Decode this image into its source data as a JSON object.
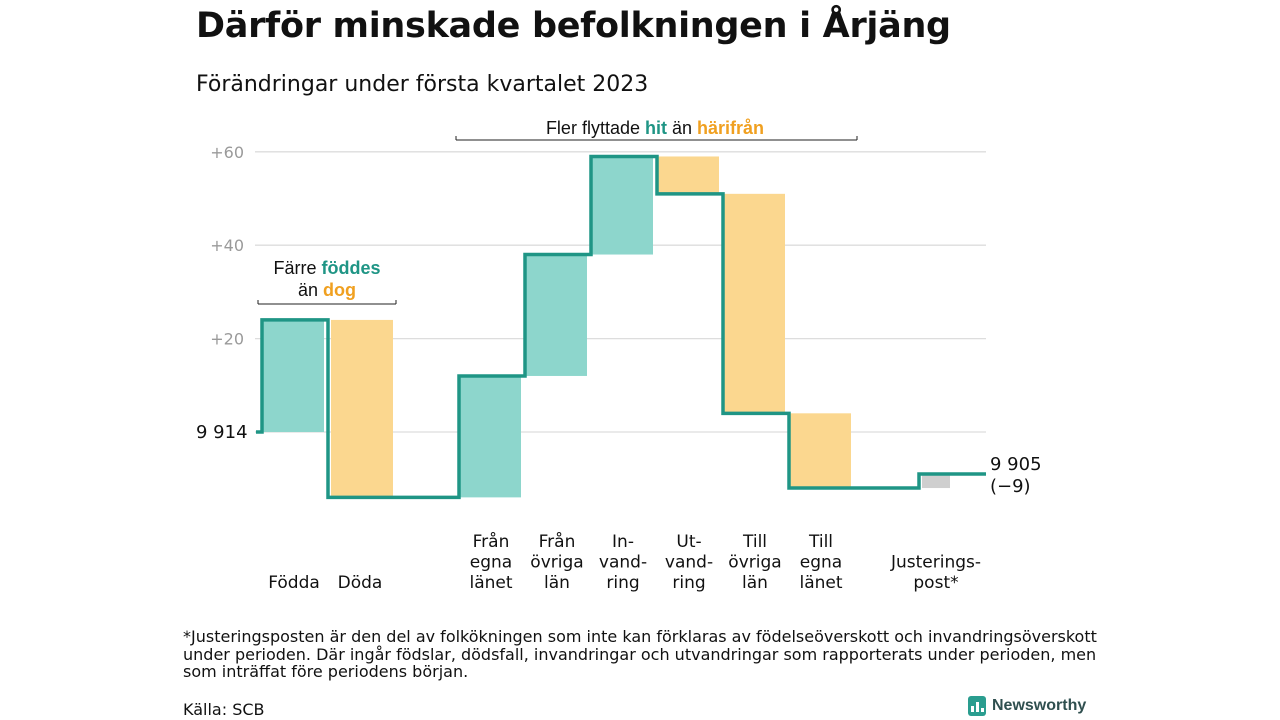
{
  "title": "Därför minskade befolkningen i Årjäng",
  "subtitle": "Förändringar under första kvartalet 2023",
  "colors": {
    "plus": "#8dd6cc",
    "minus": "#fbd78f",
    "line": "#1f9585",
    "adjust": "#cfcfcf",
    "grid": "#dddddd",
    "tick": "#9a9a9a",
    "hit": "#1f9585",
    "harifran": "#f0a020"
  },
  "chart_data": {
    "type": "waterfall",
    "start": {
      "label": "9 914",
      "value": 9914
    },
    "end": {
      "label_lines": [
        "9 905",
        "(−9)"
      ],
      "value": 9905,
      "change": -9
    },
    "ylim": [
      -14,
      61
    ],
    "y_ticks": [
      {
        "value": 20,
        "label": "+20"
      },
      {
        "value": 40,
        "label": "+40"
      },
      {
        "value": 60,
        "label": "+60"
      }
    ],
    "steps": [
      {
        "label_lines": [
          "Födda"
        ],
        "change": 24,
        "kind": "plus"
      },
      {
        "label_lines": [
          "Döda"
        ],
        "change": -38,
        "kind": "minus"
      },
      {
        "label_lines": [
          "Från",
          "egna",
          "länet"
        ],
        "change": 26,
        "kind": "plus"
      },
      {
        "label_lines": [
          "Från",
          "övriga",
          "län"
        ],
        "change": 26,
        "kind": "plus"
      },
      {
        "label_lines": [
          "In-",
          "vand-",
          "ring"
        ],
        "change": 21,
        "kind": "plus"
      },
      {
        "label_lines": [
          "Ut-",
          "vand-",
          "ring"
        ],
        "change": -8,
        "kind": "minus"
      },
      {
        "label_lines": [
          "Till",
          "övriga",
          "län"
        ],
        "change": -47,
        "kind": "minus"
      },
      {
        "label_lines": [
          "Till",
          "egna",
          "länet"
        ],
        "change": -16,
        "kind": "minus"
      },
      {
        "label_lines": [
          "Justerings-",
          "post*"
        ],
        "change": 3,
        "kind": "adjust"
      }
    ],
    "annotations": {
      "births": {
        "line1": [
          "Färre ",
          "föddes"
        ],
        "line2": [
          "än ",
          "dog"
        ]
      },
      "migration": [
        "Fler flyttade ",
        "hit",
        " än ",
        "härifrån"
      ]
    }
  },
  "footnote": "*Justeringsposten är den del av folkökningen som inte kan förklaras av födelseöverskott och invandringsöverskott under perioden. Där ingår födslar, dödsfall, invandringar och utvandringar som rapporterats under perioden, men som inträffat före periodens början.",
  "source": "Källa: SCB",
  "brand": "Newsworthy"
}
